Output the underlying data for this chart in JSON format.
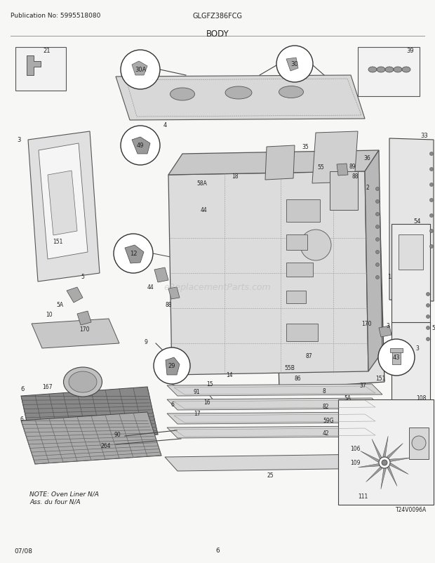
{
  "title": "BODY",
  "pub_no_label": "Publication No: 5995518080",
  "model_label": "GLGFZ386FCG",
  "date_label": "07/08",
  "page_label": "6",
  "bg_color": "#f7f7f5",
  "line_color": "#333333",
  "text_color": "#222222",
  "fig_width": 6.2,
  "fig_height": 8.03,
  "dpi": 100,
  "note_text": "NOTE: Oven Liner N/A\nAss. du four N/A",
  "watermark_text": "eReplacementParts.com",
  "t24_label": "T24V0096A"
}
